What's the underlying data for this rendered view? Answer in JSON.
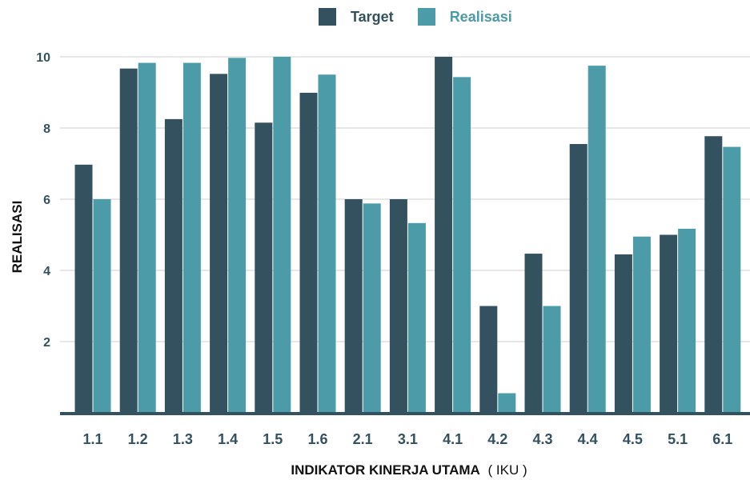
{
  "chart_data": {
    "type": "bar",
    "categories": [
      "1.1",
      "1.2",
      "1.3",
      "1.4",
      "1.5",
      "1.6",
      "2.1",
      "3.1",
      "4.1",
      "4.2",
      "4.3",
      "4.4",
      "4.5",
      "5.1",
      "6.1"
    ],
    "series": [
      {
        "name": "Target",
        "color": "#34515f",
        "values": [
          6.97,
          9.67,
          8.25,
          9.52,
          8.15,
          8.99,
          6.0,
          6.0,
          10.0,
          3.0,
          4.47,
          7.55,
          4.45,
          5.0,
          7.77
        ]
      },
      {
        "name": "Realisasi",
        "color": "#4b9ca8",
        "values": [
          6.0,
          9.83,
          9.83,
          9.97,
          10.0,
          9.5,
          5.88,
          5.33,
          9.43,
          0.55,
          3.0,
          9.75,
          4.95,
          5.17,
          7.47
        ]
      }
    ],
    "yticks": [
      "2",
      "4",
      "6",
      "8",
      "10"
    ],
    "ylim": [
      0,
      10
    ],
    "ylabel": "REALISASI",
    "xlabel_bold": "INDIKATOR KINERJA UTAMA",
    "xlabel_normal": "( IKU )",
    "grid": true,
    "legend_position": "top-center",
    "colors": {
      "axis": "#34515f",
      "grid": "#cfcfcf",
      "tick_text": "#34515f",
      "xtick_text": "#34515f"
    }
  }
}
